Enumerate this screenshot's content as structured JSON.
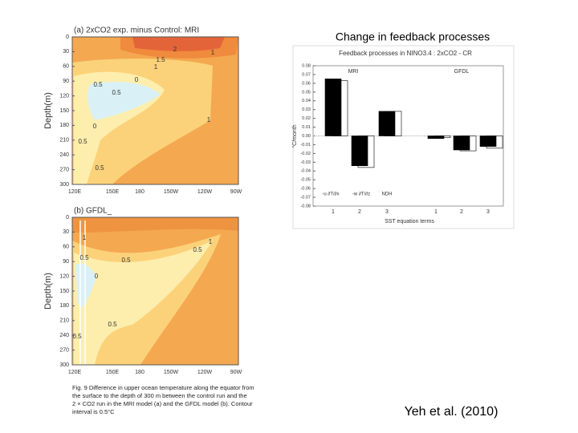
{
  "slide": {
    "title": "Change in feedback processes",
    "citation": "Yeh et al. (2010)"
  },
  "contour_panels": [
    {
      "title": "(a) 2xCO2 exp. minus Control: MRI",
      "ylabel": "Depth(m)",
      "depth_ticks": [
        0,
        30,
        60,
        90,
        120,
        150,
        180,
        210,
        240,
        270,
        300
      ],
      "lon_ticks": [
        "120E",
        "150E",
        "180",
        "150W",
        "120W",
        "90W"
      ],
      "contour_labels": [
        "2",
        "1",
        "1.5",
        "1",
        "0.5",
        "0",
        "0.5",
        "1",
        "0",
        "0.5",
        "0.5"
      ]
    },
    {
      "title": "(b) GFDL_",
      "ylabel": "Depth(m)",
      "depth_ticks": [
        0,
        30,
        60,
        90,
        120,
        150,
        180,
        210,
        240,
        270,
        300
      ],
      "lon_ticks": [
        "120E",
        "150E",
        "180",
        "150W",
        "120W",
        "90W"
      ],
      "contour_labels": [
        "1",
        "1",
        "0.5",
        "0.5",
        "0.5",
        "0",
        "0.5",
        "0.5"
      ]
    }
  ],
  "caption": {
    "lines": [
      "Fig. 9  Difference in upper ocean temperature along the equator from",
      "the surface to the depth of 300 m between the control run and the",
      "2 × CO2 run in the MRI model (a) and the GFDL model (b). Contour",
      "interval is 0.5°C"
    ]
  },
  "chart_data": {
    "type": "bar",
    "title": "Feedback processes in NINO3.4 : 2xCO2 - CR",
    "groups": [
      "MRI",
      "GFDL"
    ],
    "categories": [
      "1",
      "2",
      "3",
      "1",
      "2",
      "3"
    ],
    "term_labels": [
      "-u ∂T/∂x",
      "-w ∂T/∂z",
      "NDH"
    ],
    "series": [
      {
        "color": "#ffffff",
        "values": [
          0.063,
          -0.036,
          0.028,
          -0.002,
          -0.017,
          -0.014
        ]
      },
      {
        "color": "#000000",
        "values": [
          0.065,
          -0.034,
          0.028,
          -0.003,
          -0.016,
          -0.012
        ]
      }
    ],
    "ylim": [
      -0.08,
      0.08
    ],
    "yticks": [
      0.08,
      0.07,
      0.06,
      0.05,
      0.04,
      0.03,
      0.02,
      0.01,
      {
        "value": 0,
        "label": "0.00"
      },
      -0.01,
      -0.02,
      -0.03,
      -0.04,
      -0.05,
      -0.06,
      -0.07,
      -0.08
    ],
    "ylabel": "°C/month",
    "xlabel": "SST equation terms"
  }
}
